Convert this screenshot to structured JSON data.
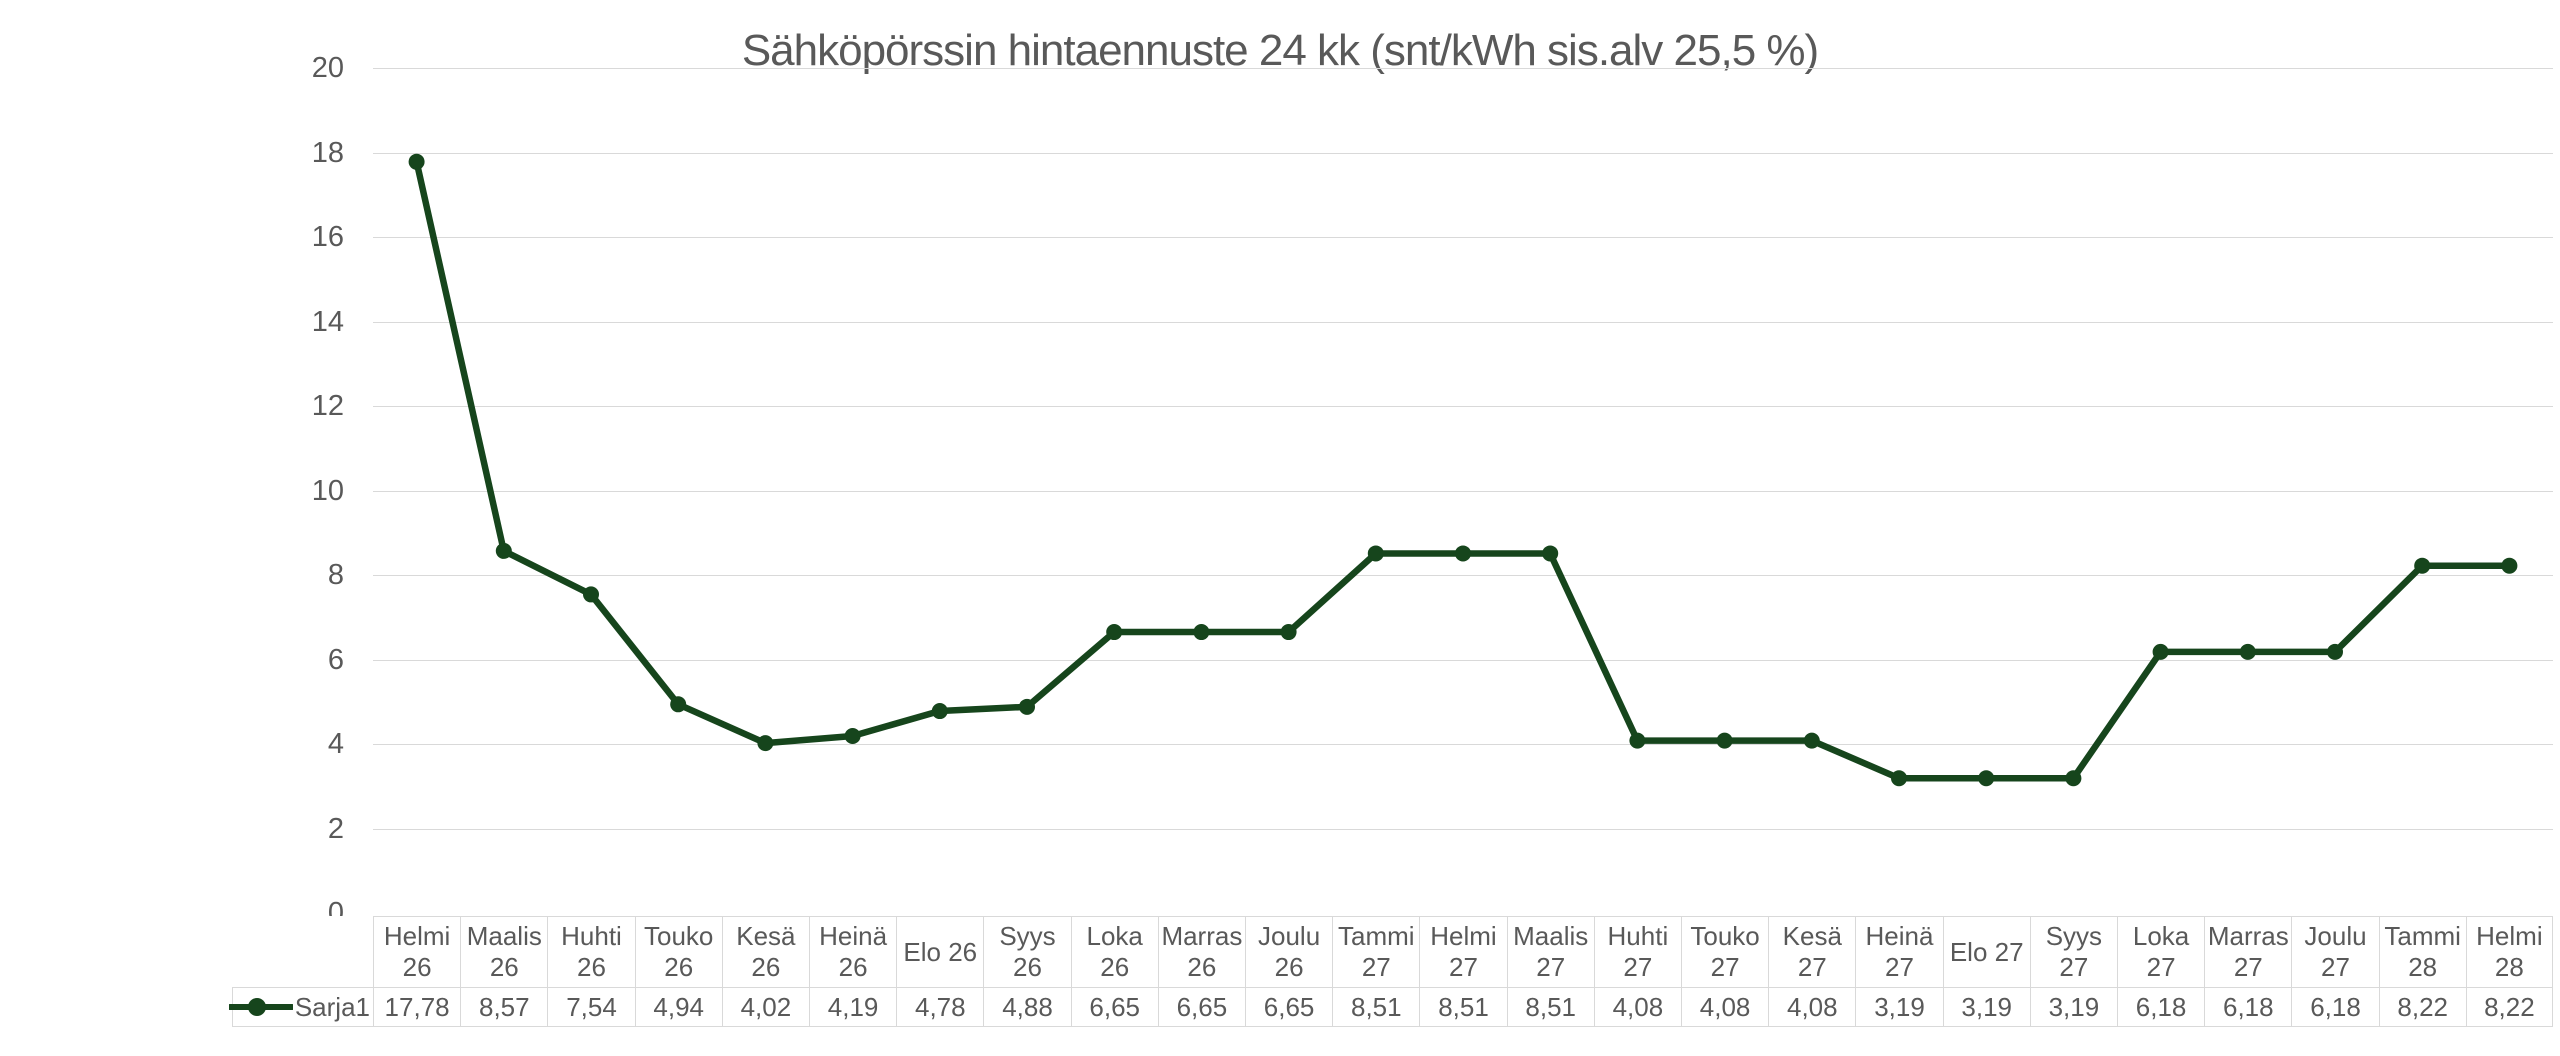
{
  "chart_data": {
    "type": "line",
    "title": "Sähköpörssin hintaennuste 24 kk (snt/kWh sis.alv 25,5 %)",
    "categories": [
      "Helmi 26",
      "Maalis 26",
      "Huhti 26",
      "Touko 26",
      "Kesä 26",
      "Heinä 26",
      "Elo 26",
      "Syys 26",
      "Loka 26",
      "Marras 26",
      "Joulu 26",
      "Tammi 27",
      "Helmi 27",
      "Maalis 27",
      "Huhti 27",
      "Touko 27",
      "Kesä 27",
      "Heinä 27",
      "Elo 27",
      "Syys 27",
      "Loka 27",
      "Marras 27",
      "Joulu 27",
      "Tammi 28",
      "Helmi 28"
    ],
    "series": [
      {
        "name": "Sarja1",
        "values": [
          17.78,
          8.57,
          7.54,
          4.94,
          4.02,
          4.19,
          4.78,
          4.88,
          6.65,
          6.65,
          6.65,
          8.51,
          8.51,
          8.51,
          4.08,
          4.08,
          4.08,
          3.19,
          3.19,
          3.19,
          6.18,
          6.18,
          6.18,
          8.22,
          8.22
        ],
        "display_values": [
          "17,78",
          "8,57",
          "7,54",
          "4,94",
          "4,02",
          "4,19",
          "4,78",
          "4,88",
          "6,65",
          "6,65",
          "6,65",
          "8,51",
          "8,51",
          "8,51",
          "4,08",
          "4,08",
          "4,08",
          "3,19",
          "3,19",
          "3,19",
          "6,18",
          "6,18",
          "6,18",
          "8,22",
          "8,22"
        ]
      }
    ],
    "y_axis": {
      "min": 0,
      "max": 20,
      "step": 2,
      "tick_labels": [
        "0",
        "2",
        "4",
        "6",
        "8",
        "10",
        "12",
        "14",
        "16",
        "18",
        "20"
      ]
    },
    "x_axis": {
      "single_line_labels": [
        "Elo 26",
        "Syys 26",
        "Elo 27",
        "Syys 27"
      ]
    },
    "grid": true,
    "legend_position": "data_table_left",
    "marker": "circle",
    "colors": {
      "series_line": "#16451c",
      "text": "#595959",
      "gridline": "#d9d9d9",
      "table_border": "#d9d9d9",
      "background": "#ffffff"
    }
  }
}
